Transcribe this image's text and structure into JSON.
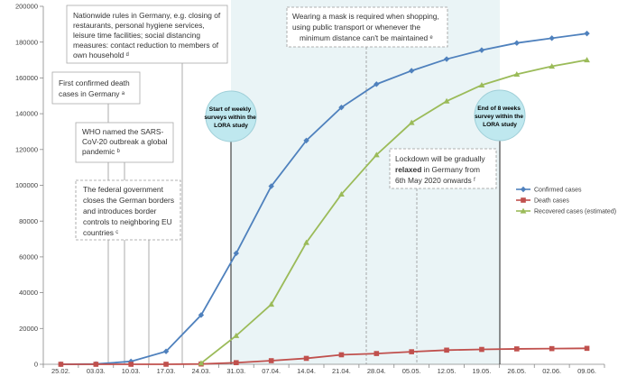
{
  "chart_data": {
    "type": "line",
    "categories": [
      "25.02.",
      "03.03.",
      "10.03.",
      "17.03.",
      "24.03.",
      "31.03.",
      "07.04.",
      "14.04.",
      "21.04.",
      "28.04.",
      "05.05.",
      "12.05.",
      "19.05.",
      "26.05.",
      "02.06.",
      "09.06."
    ],
    "ylim": [
      0,
      200000
    ],
    "yticks": [
      0,
      20000,
      40000,
      60000,
      80000,
      100000,
      120000,
      140000,
      160000,
      180000,
      200000
    ],
    "grid": false,
    "legend_position": "right",
    "series": [
      {
        "name": "Confirmed cases",
        "color": "#4f81bd",
        "marker": "diamond",
        "values": [
          16,
          150,
          1600,
          7200,
          27500,
          62000,
          99500,
          125000,
          143500,
          156500,
          164000,
          170500,
          175500,
          179500,
          182200,
          184800
        ]
      },
      {
        "name": "Death cases",
        "color": "#c0504d",
        "marker": "square",
        "values": [
          0,
          0,
          2,
          15,
          150,
          900,
          2000,
          3300,
          5300,
          6000,
          7000,
          7900,
          8300,
          8600,
          8750,
          8900
        ]
      },
      {
        "name": "Recovered cases (estimated)",
        "color": "#9bbb59",
        "marker": "triangle",
        "values": [
          null,
          null,
          null,
          null,
          600,
          16000,
          33500,
          68000,
          95000,
          117000,
          135000,
          147000,
          156000,
          162000,
          166500,
          170000
        ]
      }
    ]
  },
  "annotations": {
    "box_rules": [
      "Nationwide rules in Germany, e.g. closing of",
      "restaurants, personal hygiene services,",
      "leisure time facilities; social distancing",
      "measures: contact reduction to members of",
      "own household ᵈ"
    ],
    "box_death": [
      "First confirmed death",
      "cases in Germany ᵃ"
    ],
    "box_who": [
      "WHO named the SARS-",
      "CoV-20  outbreak a global",
      "pandemic ᵇ"
    ],
    "box_border": [
      "The federal government",
      "closes the German borders",
      "and introduces border",
      "controls to neighboring EU",
      "countries ᶜ"
    ],
    "box_mask": [
      "Wearing a mask is required when shopping,",
      "using public transport or whenever  the",
      "minimum distance can't be maintained ᵉ"
    ],
    "box_lockdown_pre": "Lockdown  will be gradually",
    "box_lockdown_bold": "relaxed",
    "box_lockdown_post": " in Germany from",
    "box_lockdown_last": "6th  May 2020 onwards ᶠ",
    "bubble_start": [
      "Start of weekly",
      "surveys within the",
      "LORA study"
    ],
    "bubble_end": [
      "End of 8 weeks",
      "survey within the",
      "LORA study"
    ]
  }
}
